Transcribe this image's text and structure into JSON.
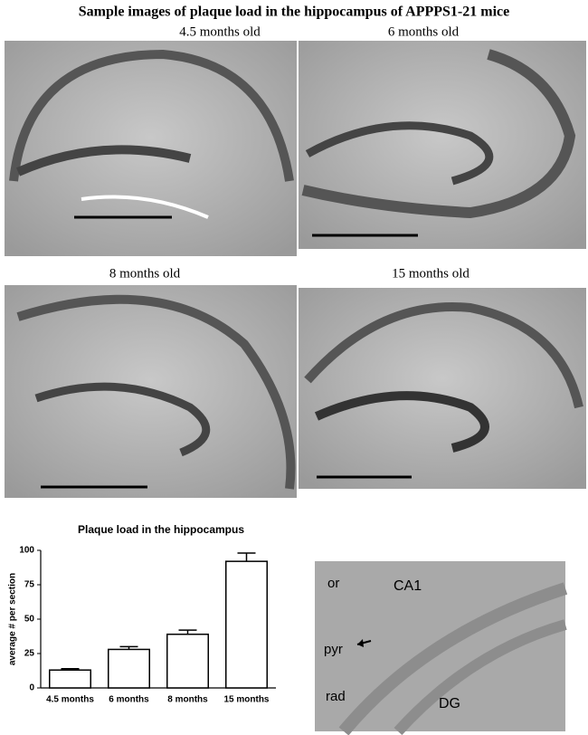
{
  "figure_title": "Sample images of plaque load in the hippocampus of APPPS1-21 mice",
  "panels": [
    {
      "label": "4.5 months old"
    },
    {
      "label": "6 months old"
    },
    {
      "label": "8 months old"
    },
    {
      "label": "15 months old"
    }
  ],
  "annotated_image": {
    "labels": [
      "or",
      "CA1",
      "pyr",
      "rad",
      "DG"
    ]
  },
  "chart_data": {
    "type": "bar",
    "title": "Plaque load in the hippocampus",
    "y_label": "average # per section",
    "categories": [
      "4.5 months",
      "6 months",
      "8 months",
      "15 months"
    ],
    "values": [
      13,
      28,
      39,
      92
    ],
    "errors": [
      1,
      2,
      3,
      6
    ],
    "color": "#ffffff",
    "ylim": [
      0,
      100
    ],
    "yticks": [
      0,
      25,
      50,
      75,
      100
    ],
    "grid": false
  }
}
